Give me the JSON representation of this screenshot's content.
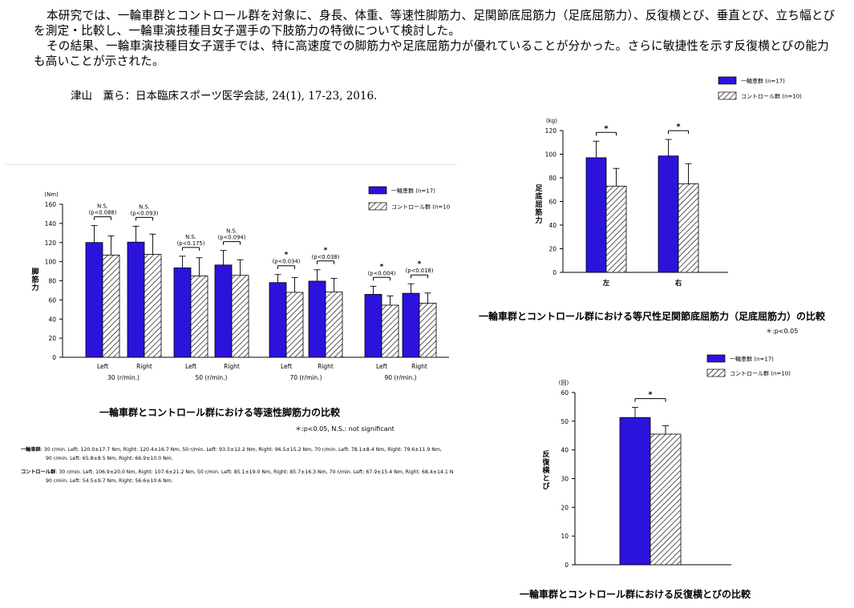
{
  "intro": {
    "paragraph1": "本研究では、一輪車群とコントロール群を対象に、身長、体重、等速性脚筋力、足関節底屈筋力（足底屈筋力）、反復横とび、垂直とび、立ち幅とびを測定・比較し、一輪車演技種目女子選手の下肢筋力の特徴について検討した。",
    "paragraph2": "その結果、一輪車演技種目女子選手では、特に高速度での脚筋力や足底屈筋力が優れていることが分かった。さらに敏捷性を示す反復横とびの能力も高いことが示された。"
  },
  "citation": "津山　薫ら：日本臨床スポーツ医学会誌, 24(1), 17-23, 2016.",
  "colors": {
    "unicycle": "#2b13dc",
    "control_hatch": "#000000",
    "background": "#ffffff"
  },
  "legend": {
    "unicycle": "一輪車群 (n=17)",
    "control": "コントロール群 (n=10)",
    "control_chart1": "コントロール群 (n=10"
  },
  "chart1_caption": "一輪車群とコントロール群における等速性脚筋力の比較",
  "chart1_footnote": "＊:p<0.05,  N.S.: not significant",
  "chart1_data_text": {
    "unicycle_label": "一輪車群",
    "unicycle_line1": ": 30 r/min. Left: 120.0±17.7 Nm,  Right: 120.4±16.7 Nm,    50 r/min. Left: 93.5±12.2 Nm, Right: 96.5±15.2 Nm,    70 r/min. Left: 78.1±8.4 Nm,  Right: 79.6±11.9 Nm,",
    "unicycle_line2": "90 r/min. Left: 65.8±8.5 Nm, Right: 66.9±10.0 Nm.",
    "control_label": "コントロール群",
    "control_line1": ": 30 r/min. Left: 106.9±20.0 Nm, Right: 107.6±21.2 Nm,    50 r/min. Left: 85.1±19.0 Nm, Right: 85.7±16.3 Nm,    70 r/min. Left: 67.9±15.4 Nm, Right: 68.4±14.1 N",
    "control_line2": "90 r/min. Left: 54.5±9.7 Nm, Right: 56.6±10.6 Nm."
  },
  "chart2_caption": "一輪車群とコントロール群における等尺性足関節底屈筋力（足底屈筋力）の比較",
  "chart2_footnote": "＊:p<0.05",
  "chart3_caption": "一輪車群とコントロール群における反復横とびの比較",
  "chart_data": [
    {
      "id": "isokinetic",
      "type": "bar",
      "unit_label": "(Nm)",
      "ylabel": "脚筋力",
      "ylim": [
        0,
        160
      ],
      "yticks": [
        0,
        20,
        40,
        60,
        80,
        100,
        120,
        140,
        160
      ],
      "groups": [
        {
          "label": "30 (r/min.)",
          "sides": [
            "Left",
            "Right"
          ]
        },
        {
          "label": "50 (r/min.)",
          "sides": [
            "Left",
            "Right"
          ]
        },
        {
          "label": "70 (r/min.)",
          "sides": [
            "Left",
            "Right"
          ]
        },
        {
          "label": "90 (r/min.)",
          "sides": [
            "Left",
            "Right"
          ]
        }
      ],
      "series": [
        {
          "name": "一輪車群",
          "values": [
            120.0,
            120.4,
            93.5,
            96.5,
            78.1,
            79.6,
            65.8,
            66.9
          ],
          "errors": [
            17.7,
            16.7,
            12.2,
            15.2,
            8.4,
            11.9,
            8.5,
            10.0
          ]
        },
        {
          "name": "コントロール群",
          "values": [
            106.9,
            107.6,
            85.1,
            85.7,
            67.9,
            68.4,
            54.5,
            56.6
          ],
          "errors": [
            20.0,
            21.2,
            19.0,
            16.3,
            15.4,
            14.1,
            9.7,
            10.6
          ]
        }
      ],
      "significance": [
        {
          "mark": "N.S.",
          "p": "(p<0.088)"
        },
        {
          "mark": "N.S.",
          "p": "(p<0.093)"
        },
        {
          "mark": "N.S.",
          "p": "(p<0.175)"
        },
        {
          "mark": "N.S.",
          "p": "(p<0.094)"
        },
        {
          "mark": "*",
          "p": "(p<0.034)"
        },
        {
          "mark": "*",
          "p": "(p<0.038)"
        },
        {
          "mark": "*",
          "p": "(p<0.004)"
        },
        {
          "mark": "*",
          "p": "(p<0.018)"
        }
      ]
    },
    {
      "id": "plantar_flexion",
      "type": "bar",
      "unit_label": "(kg)",
      "ylabel": "足底屈筋力",
      "ylim": [
        0,
        120
      ],
      "yticks": [
        0,
        20,
        40,
        60,
        80,
        100,
        120
      ],
      "categories": [
        "左",
        "右"
      ],
      "series": [
        {
          "name": "一輪車群",
          "values": [
            97,
            98.5
          ],
          "errors": [
            14,
            14
          ]
        },
        {
          "name": "コントロール群",
          "values": [
            73,
            75
          ],
          "errors": [
            15,
            17
          ]
        }
      ],
      "significance": [
        "*",
        "*"
      ]
    },
    {
      "id": "side_step",
      "type": "bar",
      "unit_label": "(回)",
      "ylabel": "反復横とび",
      "ylim": [
        0,
        60
      ],
      "yticks": [
        0,
        10,
        20,
        30,
        40,
        50,
        60
      ],
      "categories": [
        ""
      ],
      "series": [
        {
          "name": "一輪車群",
          "values": [
            51.3
          ],
          "errors": [
            3.5
          ]
        },
        {
          "name": "コントロール群",
          "values": [
            45.5
          ],
          "errors": [
            2.9
          ]
        }
      ],
      "significance": [
        "*"
      ]
    }
  ]
}
